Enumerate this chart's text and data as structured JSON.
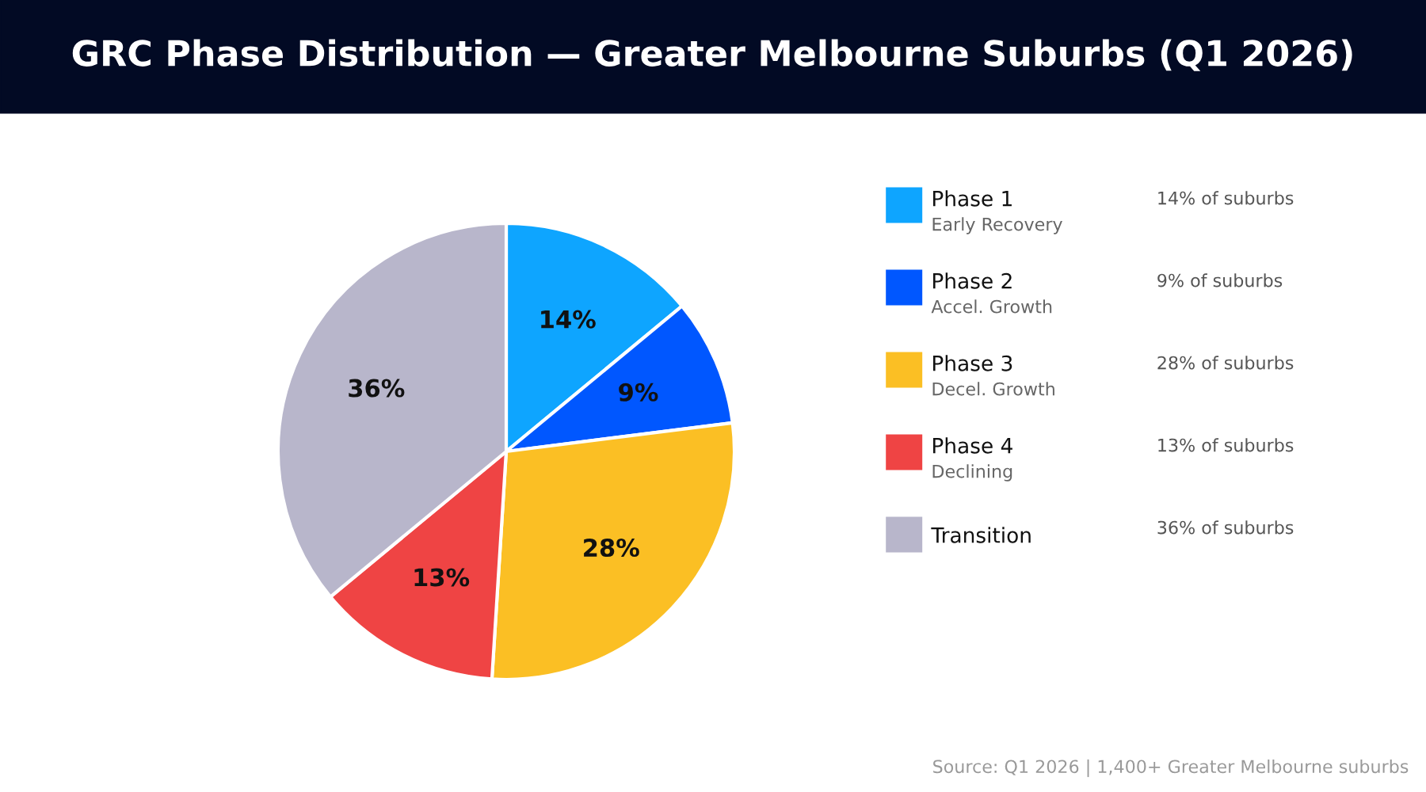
{
  "chart_data": {
    "type": "pie",
    "title": "GRC Phase Distribution — Greater Melbourne Suburbs (Q1 2026)",
    "categories": [
      "Phase 1\nEarly Recovery",
      "Phase 2\nAccel. Growth",
      "Phase 3\nDecel. Growth",
      "Phase 4\nDeclining",
      "Transition"
    ],
    "values": [
      14,
      9,
      28,
      13,
      36
    ],
    "colors": [
      "#0ea5ff",
      "#0057ff",
      "#fbbf24",
      "#ef4444",
      "#b8b6cb"
    ],
    "value_labels": [
      "14%",
      "9%",
      "28%",
      "13%",
      "36%"
    ],
    "legend": "right",
    "annotations": [
      "14% of suburbs",
      "9% of suburbs",
      "28% of suburbs",
      "13% of suburbs",
      "36% of suburbs",
      "Source: Q1 2026 | 1,400+ Greater Melbourne suburbs"
    ]
  }
}
